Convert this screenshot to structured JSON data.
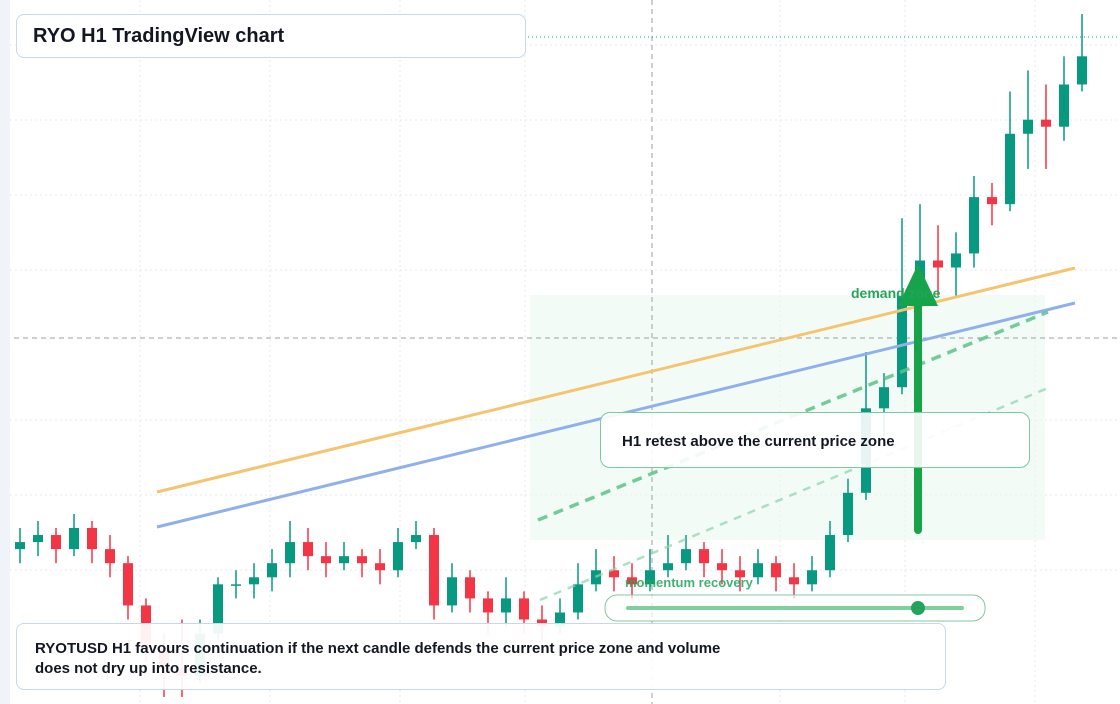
{
  "chart_data": {
    "type": "candlestick",
    "title": "RYO H1 TradingView chart",
    "caption": "RYOTUSD H1 favours continuation if the next candle defends the current price zone and volume does not dry up into resistance.",
    "annotations": [
      "demand zone",
      "momentum recovery",
      "H1 retest above the current price zone"
    ],
    "ylim": [
      0,
      100
    ],
    "up_color": "#089981",
    "down_color": "#f23645",
    "ohlc": [
      [
        22,
        25,
        20,
        23
      ],
      [
        23,
        26,
        21,
        24
      ],
      [
        24,
        25,
        20,
        22
      ],
      [
        22,
        27,
        21,
        25
      ],
      [
        25,
        26,
        20,
        22
      ],
      [
        22,
        24,
        18,
        20
      ],
      [
        20,
        21,
        12,
        14
      ],
      [
        14,
        15,
        6,
        8
      ],
      [
        8,
        10,
        1,
        5
      ],
      [
        5,
        12,
        1,
        4
      ],
      [
        4,
        12,
        3,
        10
      ],
      [
        10,
        18,
        9,
        17
      ],
      [
        17,
        19,
        15,
        17
      ],
      [
        17,
        20,
        15,
        18
      ],
      [
        18,
        22,
        16,
        20
      ],
      [
        20,
        26,
        18,
        23
      ],
      [
        23,
        25,
        19,
        21
      ],
      [
        21,
        23,
        18,
        20
      ],
      [
        20,
        23,
        19,
        21
      ],
      [
        21,
        22,
        18,
        20
      ],
      [
        20,
        22,
        17,
        19
      ],
      [
        19,
        25,
        18,
        23
      ],
      [
        23,
        26,
        22,
        24
      ],
      [
        24,
        25,
        12,
        14
      ],
      [
        14,
        20,
        13,
        18
      ],
      [
        18,
        19,
        13,
        15
      ],
      [
        15,
        16,
        10,
        13
      ],
      [
        13,
        18,
        11,
        15
      ],
      [
        15,
        16,
        10,
        12
      ],
      [
        12,
        14,
        9,
        11
      ],
      [
        11,
        15,
        10,
        13
      ],
      [
        13,
        20,
        12,
        17
      ],
      [
        17,
        22,
        16,
        19
      ],
      [
        19,
        21,
        16,
        18
      ],
      [
        18,
        20,
        15,
        17
      ],
      [
        17,
        22,
        16,
        19
      ],
      [
        19,
        24,
        18,
        20
      ],
      [
        20,
        24,
        19,
        22
      ],
      [
        22,
        23,
        18,
        20
      ],
      [
        20,
        22,
        17,
        19
      ],
      [
        19,
        21,
        16,
        18
      ],
      [
        18,
        22,
        17,
        20
      ],
      [
        20,
        21,
        16,
        18
      ],
      [
        18,
        20,
        15,
        17
      ],
      [
        17,
        21,
        16,
        19
      ],
      [
        19,
        26,
        18,
        24
      ],
      [
        24,
        32,
        23,
        30
      ],
      [
        30,
        50,
        29,
        42
      ],
      [
        42,
        47,
        38,
        45
      ],
      [
        45,
        69,
        44,
        58
      ],
      [
        58,
        71,
        56,
        63
      ],
      [
        63,
        68,
        58,
        62
      ],
      [
        62,
        67,
        58,
        64
      ],
      [
        64,
        75,
        62,
        72
      ],
      [
        72,
        74,
        68,
        71
      ],
      [
        71,
        87,
        70,
        81
      ],
      [
        81,
        90,
        76,
        83
      ],
      [
        83,
        88,
        76,
        82
      ],
      [
        82,
        92,
        80,
        88
      ],
      [
        88,
        98,
        87,
        92
      ]
    ]
  }
}
